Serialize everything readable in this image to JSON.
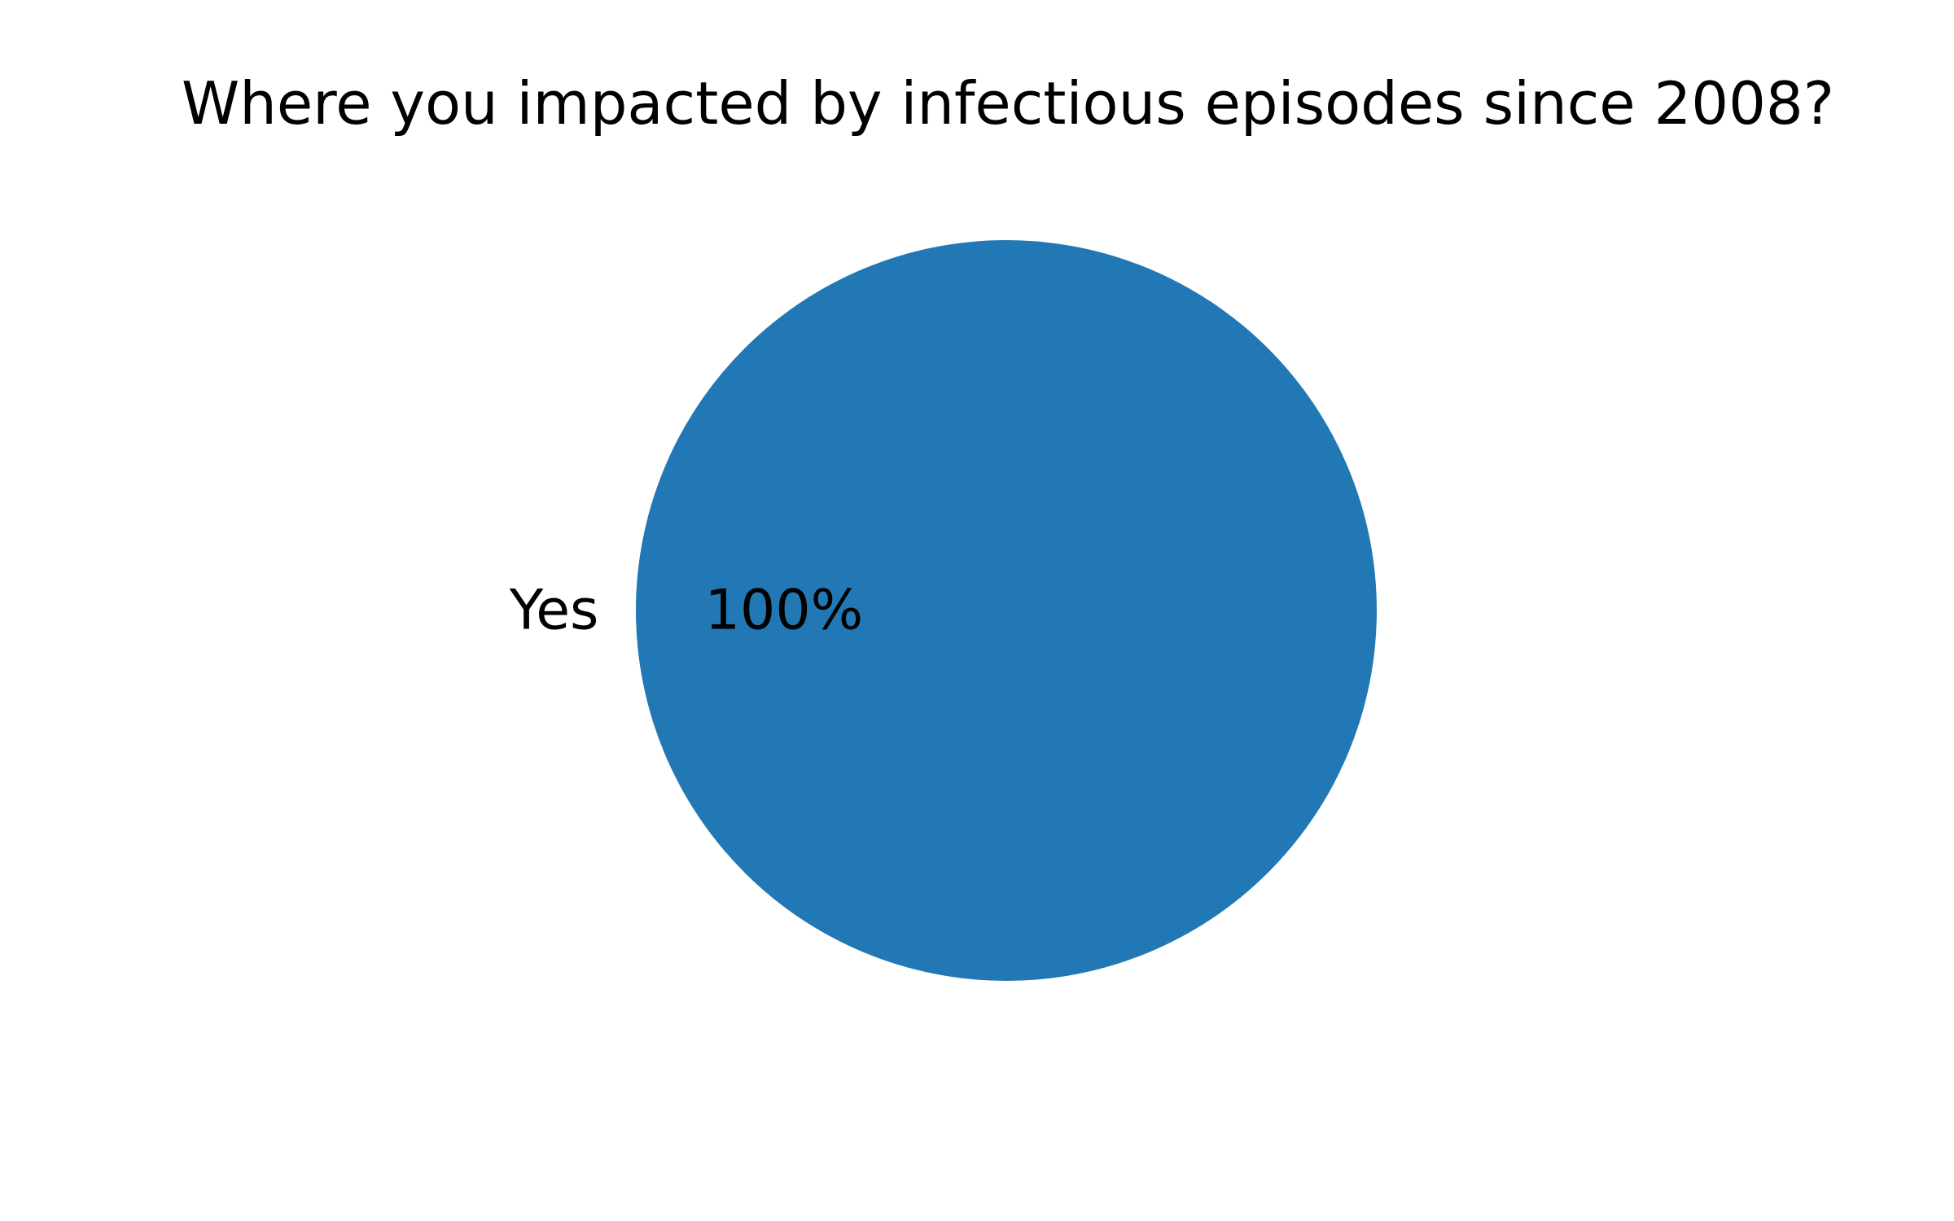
{
  "chart_data": {
    "type": "pie",
    "title": "Where you impacted by infectious episodes since 2008?",
    "slices": [
      {
        "label": "Yes",
        "value": 100,
        "pct_label": "100%",
        "color": "#2178b4"
      }
    ]
  }
}
